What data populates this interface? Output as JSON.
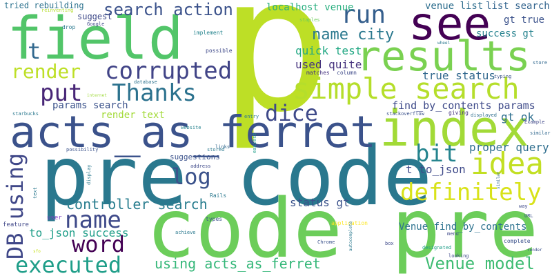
{
  "words": {
    "p": {
      "text": "p",
      "color": "#bddf26"
    },
    "code_pre": {
      "text": "code pre",
      "color": "#6ccd5a"
    },
    "pre_code": {
      "text": "pre code",
      "color": "#2a788e"
    },
    "acts_as_ferret": {
      "text": "acts_as_ferret",
      "color": "#3b528b"
    },
    "field": {
      "text": "field",
      "color": "#52c569"
    },
    "index": {
      "text": "index",
      "color": "#a2da37"
    },
    "results": {
      "text": "results",
      "color": "#7ad151"
    },
    "see": {
      "text": "see",
      "color": "#440154"
    },
    "simple_search": {
      "text": "simple search",
      "color": "#b5de2b"
    },
    "corrupted": {
      "text": "corrupted",
      "color": "#414487"
    },
    "thanks": {
      "text": "Thanks",
      "color": "#2c728e"
    },
    "idea": {
      "text": "idea",
      "color": "#c2df23"
    },
    "definitely": {
      "text": "definitely",
      "color": "#d8e219"
    },
    "executed": {
      "text": "executed",
      "color": "#1f9e89"
    },
    "word": {
      "text": "word",
      "color": "#440154"
    },
    "name": {
      "text": "name",
      "color": "#3e4989"
    },
    "run": {
      "text": "run",
      "color": "#355f8d"
    },
    "render": {
      "text": "render",
      "color": "#bddf26"
    },
    "search_action": {
      "text": "search action",
      "color": "#3b528b"
    },
    "put": {
      "text": "put",
      "color": "#482677"
    },
    "dice": {
      "text": "dice",
      "color": "#3e4989"
    },
    "bit": {
      "text": "bit",
      "color": "#25848e"
    },
    "log": {
      "text": "log",
      "color": "#3b528b"
    },
    "db_using": {
      "text": "DB using",
      "color": "#3f4788"
    },
    "t": {
      "text": "t",
      "color": "#31688e"
    },
    "name_city": {
      "text": "name city",
      "color": "#2a788e"
    },
    "controller_search": {
      "text": "controller search",
      "color": "#287d8e"
    },
    "using_acts_as_ferret": {
      "text": "using acts_as_ferret",
      "color": "#35b779"
    },
    "venue_model": {
      "text": "Venue model",
      "color": "#3fbc73"
    },
    "used_quite": {
      "text": "used quite",
      "color": "#46337e"
    },
    "quick_test": {
      "text": "quick test",
      "color": "#22a884"
    },
    "true_status": {
      "text": "true status",
      "color": "#31688e"
    },
    "find_by_contents_params": {
      "text": "find_by_contents params",
      "color": "#3e4a89"
    },
    "proper_query": {
      "text": "proper query",
      "color": "#2e6e8e"
    },
    "gt_ok": {
      "text": "gt ok",
      "color": "#2e6f8e"
    },
    "t_to_json": {
      "text": "t to_json",
      "color": "#3e4989"
    },
    "venue_find_by_contents": {
      "text": "Venue find_by_contents",
      "color": "#2c728e"
    },
    "status_gt": {
      "text": "status gt",
      "color": "#3b528b"
    },
    "to_json_success": {
      "text": "to_json success",
      "color": "#1f9e89"
    },
    "params_search": {
      "text": "params search",
      "color": "#3b528b"
    },
    "render_text": {
      "text": "render text",
      "color": "#a2da37"
    },
    "localhost_venue": {
      "text": "localhost venue",
      "color": "#29af7f"
    },
    "venue_list": {
      "text": "venue list",
      "color": "#2e6e8e"
    },
    "list_search": {
      "text": "list search",
      "color": "#32648e"
    },
    "gt_true": {
      "text": "gt true",
      "color": "#3b528b"
    },
    "success_gt": {
      "text": "success gt",
      "color": "#26828e"
    },
    "tried_rebuilding": {
      "text": "tried rebuilding",
      "color": "#2c728e"
    },
    "suggest": {
      "text": "suggest",
      "color": "#3e4989"
    },
    "suggestions": {
      "text": "suggestions",
      "color": "#3b528b"
    },
    "user": {
      "text": "user",
      "color": "#7e3ac4"
    },
    "feature": {
      "text": "feature",
      "color": "#3f4788"
    },
    "reinventing": {
      "text": "reinventing",
      "color": "#b5de2b"
    },
    "google": {
      "text": "Google",
      "color": "#3e4989"
    },
    "drop": {
      "text": "drop",
      "color": "#2a788e"
    },
    "implement": {
      "text": "implement",
      "color": "#25848e"
    },
    "possible": {
      "text": "possible",
      "color": "#3e4989"
    },
    "staples": {
      "text": "staples",
      "color": "#6ccd5a"
    },
    "wheel": {
      "text": "wheel",
      "color": "#2a788e"
    },
    "typing": {
      "text": "typing",
      "color": "#3b528b"
    },
    "store": {
      "text": "store",
      "color": "#31688e"
    },
    "matches": {
      "text": "matches",
      "color": "#46337e"
    },
    "column": {
      "text": "column",
      "color": "#3e4989"
    },
    "internet": {
      "text": "internet",
      "color": "#9fda3a"
    },
    "database": {
      "text": "database",
      "color": "#2c728e"
    },
    "starbucks": {
      "text": "starbucks",
      "color": "#2a788e"
    },
    "entry": {
      "text": "entry",
      "color": "#2a788e"
    },
    "stackoverflow": {
      "text": "stackoverflow",
      "color": "#3b528b"
    },
    "giving": {
      "text": "giving",
      "color": "#46337e"
    },
    "displayed": {
      "text": "displayed",
      "color": "#2e6e8e"
    },
    "example": {
      "text": "Example",
      "color": "#3f4788"
    },
    "website": {
      "text": "website",
      "color": "#26828e"
    },
    "similar": {
      "text": "similar",
      "color": "#31688e"
    },
    "possibility": {
      "text": "possibility",
      "color": "#3b528b"
    },
    "links": {
      "text": "links",
      "color": "#31688e"
    },
    "easiest": {
      "text": "easiest",
      "color": "#1f9e89"
    },
    "stored": {
      "text": "stored",
      "color": "#2a788e"
    },
    "address": {
      "text": "address",
      "color": "#3e4989"
    },
    "types": {
      "text": "types",
      "color": "#3b528b"
    },
    "text": {
      "text": "text",
      "color": "#2a788e"
    },
    "display": {
      "text": "display",
      "color": "#2a788e"
    },
    "rails": {
      "text": "Rails",
      "color": "#2a788e"
    },
    "application": {
      "text": "application",
      "color": "#fde725"
    },
    "way": {
      "text": "way",
      "color": "#3e4989"
    },
    "url": {
      "text": "URL",
      "color": "#3b528b"
    },
    "sfo": {
      "text": "sfo",
      "color": "#c8e020"
    },
    "achieve": {
      "text": "achieve",
      "color": "#2a788e"
    },
    "chrome": {
      "text": "Chrome",
      "color": "#3b528b"
    },
    "autocomplete": {
      "text": "autocomplete",
      "color": "#2a788e"
    },
    "box": {
      "text": "box",
      "color": "#3e4989"
    },
    "menu": {
      "text": "menu",
      "color": "#3e4989"
    },
    "designated": {
      "text": "designated",
      "color": "#1f9e89"
    },
    "complete": {
      "text": "complete",
      "color": "#3b528b"
    },
    "looking": {
      "text": "looking",
      "color": "#3e4989"
    },
    "similar2": {
      "text": "similar",
      "color": "#31688e"
    },
    "render2": {
      "text": "render",
      "color": "#3b528b"
    }
  }
}
